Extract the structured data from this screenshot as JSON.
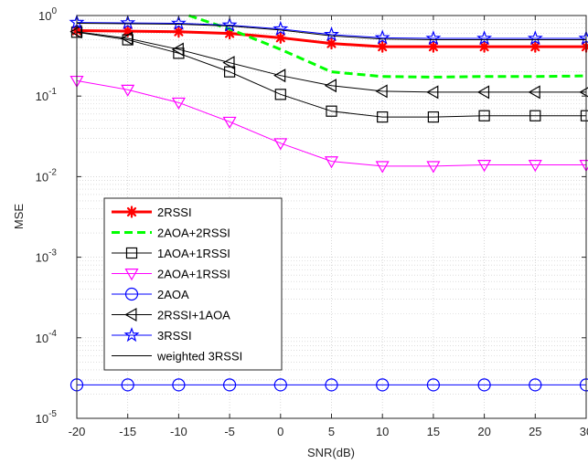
{
  "chart_data": {
    "type": "line",
    "title": "",
    "xlabel": "SNR(dB)",
    "ylabel": "MSE",
    "xlim": [
      -20,
      30
    ],
    "ylim": [
      1e-05,
      1
    ],
    "yscale": "log",
    "grid": true,
    "minor_grid": true,
    "legend_position": "left",
    "x_ticks": [
      -20,
      -15,
      -10,
      -5,
      0,
      5,
      10,
      15,
      20,
      25,
      30
    ],
    "x_tick_labels": [
      "-20",
      "-15",
      "-10",
      "-5",
      "0",
      "5",
      "10",
      "15",
      "20",
      "25",
      "30"
    ],
    "y_ticks": [
      {
        "value": 1e-05,
        "base": "10",
        "exp": "-5"
      },
      {
        "value": 0.0001,
        "base": "10",
        "exp": "-4"
      },
      {
        "value": 0.001,
        "base": "10",
        "exp": "-3"
      },
      {
        "value": 0.01,
        "base": "10",
        "exp": "-2"
      },
      {
        "value": 0.1,
        "base": "10",
        "exp": "-1"
      },
      {
        "value": 1,
        "base": "10",
        "exp": "0"
      }
    ],
    "x": [
      -20,
      -15,
      -10,
      -5,
      0,
      5,
      10,
      15,
      20,
      25,
      30
    ],
    "series": [
      {
        "name": "2RSSI",
        "color": "#ff0000",
        "line": "solid",
        "width": 3,
        "marker": "asterisk",
        "values": [
          0.65,
          0.64,
          0.63,
          0.6,
          0.53,
          0.45,
          0.41,
          0.41,
          0.41,
          0.41,
          0.41
        ]
      },
      {
        "name": "2AOA+2RSSI",
        "color": "#00ff00",
        "line": "dashed",
        "width": 3,
        "marker": "none",
        "x": [
          -9,
          -5,
          0,
          5,
          10,
          15,
          20,
          25,
          30
        ],
        "values": [
          1.0,
          0.68,
          0.38,
          0.2,
          0.175,
          0.172,
          0.175,
          0.175,
          0.178
        ]
      },
      {
        "name": "1AOA+1RSSI",
        "color": "#000000",
        "line": "solid",
        "width": 1,
        "marker": "square",
        "values": [
          0.62,
          0.5,
          0.34,
          0.2,
          0.105,
          0.065,
          0.055,
          0.055,
          0.057,
          0.057,
          0.057
        ]
      },
      {
        "name": "2AOA+1RSSI",
        "color": "#ff00ff",
        "line": "solid",
        "width": 1,
        "marker": "triangle-down",
        "values": [
          0.155,
          0.12,
          0.083,
          0.048,
          0.026,
          0.0155,
          0.0135,
          0.0135,
          0.014,
          0.014,
          0.014
        ]
      },
      {
        "name": "2AOA",
        "color": "#0000ff",
        "line": "solid",
        "width": 1,
        "marker": "circle",
        "values": [
          2.6e-05,
          2.6e-05,
          2.6e-05,
          2.6e-05,
          2.6e-05,
          2.6e-05,
          2.6e-05,
          2.6e-05,
          2.6e-05,
          2.6e-05,
          2.6e-05
        ]
      },
      {
        "name": "2RSSI+1AOA",
        "color": "#000000",
        "line": "solid",
        "width": 1,
        "marker": "triangle-left",
        "values": [
          0.63,
          0.52,
          0.38,
          0.26,
          0.18,
          0.135,
          0.115,
          0.112,
          0.112,
          0.112,
          0.112
        ]
      },
      {
        "name": "3RSSI",
        "color": "#0000ff",
        "line": "solid",
        "width": 1,
        "marker": "star",
        "values": [
          0.82,
          0.81,
          0.8,
          0.76,
          0.68,
          0.58,
          0.53,
          0.52,
          0.52,
          0.52,
          0.52
        ]
      },
      {
        "name": "weighted 3RSSI",
        "color": "#000000",
        "line": "solid",
        "width": 1,
        "marker": "none",
        "values": [
          0.8,
          0.79,
          0.78,
          0.74,
          0.66,
          0.56,
          0.51,
          0.5,
          0.5,
          0.5,
          0.5
        ]
      }
    ]
  }
}
